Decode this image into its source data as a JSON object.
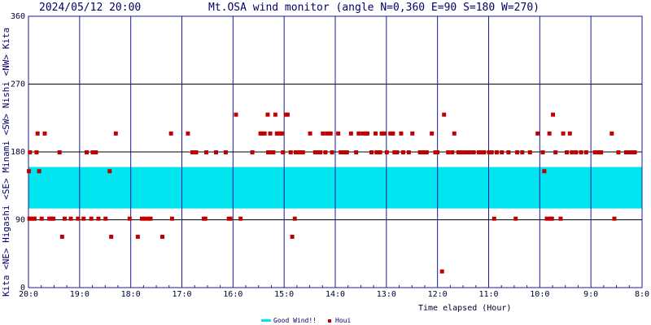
{
  "header": {
    "datetime": "2024/05/12 20:00",
    "title": "Mt.OSA wind monitor (angle N=0,360 E=90 S=180 W=270)"
  },
  "side_label": "Kita <NE> Higashi <SE> Minami <SW> Nishi <NW> Kita",
  "legend": {
    "good_label": "Good Wind!!",
    "houi_label": "Houi"
  },
  "colors": {
    "grid": "#1a1a9e",
    "good_band": "#00e5f0",
    "marker": "#c00000",
    "text": "#000066"
  },
  "chart_data": {
    "type": "scatter",
    "title": "Mt.OSA wind monitor (angle N=0,360 E=90 S=180 W=270)",
    "xlabel": "Time elapsed (Hour)",
    "ylabel": "",
    "xlim": [
      20,
      8
    ],
    "ylim": [
      0,
      360
    ],
    "xticks": [
      "20:0",
      "19:0",
      "18:0",
      "17:0",
      "16:0",
      "15:0",
      "14:0",
      "13:0",
      "12:0",
      "11:0",
      "10:0",
      "9:0",
      "8:0"
    ],
    "yticks": [
      "0",
      "90",
      "180",
      "270",
      "360"
    ],
    "good_wind_band": [
      105,
      160
    ],
    "grid": true,
    "legend_position": "bottom-center",
    "series": [
      {
        "name": "Houi",
        "points": [
          [
            20.0,
            155
          ],
          [
            19.99,
            92
          ],
          [
            19.98,
            180
          ],
          [
            19.95,
            92
          ],
          [
            19.9,
            92
          ],
          [
            19.89,
            92
          ],
          [
            19.85,
            180
          ],
          [
            19.83,
            205
          ],
          [
            19.8,
            155
          ],
          [
            19.75,
            92
          ],
          [
            19.69,
            205
          ],
          [
            19.6,
            92
          ],
          [
            19.55,
            92
          ],
          [
            19.52,
            92
          ],
          [
            19.4,
            180
          ],
          [
            19.35,
            68
          ],
          [
            19.3,
            92
          ],
          [
            19.18,
            92
          ],
          [
            19.04,
            92
          ],
          [
            18.93,
            92
          ],
          [
            18.87,
            180
          ],
          [
            18.78,
            92
          ],
          [
            18.75,
            180
          ],
          [
            18.69,
            180
          ],
          [
            18.64,
            92
          ],
          [
            18.5,
            92
          ],
          [
            18.42,
            155
          ],
          [
            18.39,
            68
          ],
          [
            18.3,
            205
          ],
          [
            18.03,
            92
          ],
          [
            17.87,
            68
          ],
          [
            17.79,
            92
          ],
          [
            17.73,
            92
          ],
          [
            17.66,
            92
          ],
          [
            17.62,
            92
          ],
          [
            17.39,
            68
          ],
          [
            17.22,
            205
          ],
          [
            17.2,
            92
          ],
          [
            16.89,
            205
          ],
          [
            16.8,
            180
          ],
          [
            16.73,
            180
          ],
          [
            16.58,
            92
          ],
          [
            16.55,
            92
          ],
          [
            16.53,
            180
          ],
          [
            16.34,
            180
          ],
          [
            16.15,
            180
          ],
          [
            16.09,
            92
          ],
          [
            16.06,
            92
          ],
          [
            15.95,
            230
          ],
          [
            15.86,
            92
          ],
          [
            15.63,
            180
          ],
          [
            15.47,
            205
          ],
          [
            15.44,
            205
          ],
          [
            15.39,
            205
          ],
          [
            15.33,
            230
          ],
          [
            15.32,
            180
          ],
          [
            15.28,
            205
          ],
          [
            15.26,
            180
          ],
          [
            15.22,
            180
          ],
          [
            15.18,
            230
          ],
          [
            15.15,
            205
          ],
          [
            15.11,
            205
          ],
          [
            15.07,
            205
          ],
          [
            15.05,
            205
          ],
          [
            15.03,
            180
          ],
          [
            14.97,
            230
          ],
          [
            14.94,
            230
          ],
          [
            14.88,
            180
          ],
          [
            14.85,
            68
          ],
          [
            14.8,
            92
          ],
          [
            14.78,
            180
          ],
          [
            14.7,
            180
          ],
          [
            14.68,
            180
          ],
          [
            14.64,
            180
          ],
          [
            14.5,
            205
          ],
          [
            14.4,
            180
          ],
          [
            14.37,
            180
          ],
          [
            14.3,
            180
          ],
          [
            14.25,
            205
          ],
          [
            14.2,
            180
          ],
          [
            14.17,
            205
          ],
          [
            14.1,
            205
          ],
          [
            14.07,
            180
          ],
          [
            13.95,
            205
          ],
          [
            13.9,
            180
          ],
          [
            13.83,
            180
          ],
          [
            13.78,
            180
          ],
          [
            13.7,
            205
          ],
          [
            13.6,
            180
          ],
          [
            13.55,
            205
          ],
          [
            13.47,
            205
          ],
          [
            13.41,
            205
          ],
          [
            13.38,
            205
          ],
          [
            13.3,
            180
          ],
          [
            13.22,
            205
          ],
          [
            13.2,
            180
          ],
          [
            13.13,
            180
          ],
          [
            13.1,
            205
          ],
          [
            13.05,
            205
          ],
          [
            13.0,
            180
          ],
          [
            12.93,
            205
          ],
          [
            12.88,
            205
          ],
          [
            12.85,
            180
          ],
          [
            12.8,
            180
          ],
          [
            12.72,
            205
          ],
          [
            12.68,
            180
          ],
          [
            12.57,
            180
          ],
          [
            12.5,
            205
          ],
          [
            12.35,
            180
          ],
          [
            12.28,
            180
          ],
          [
            12.22,
            180
          ],
          [
            12.12,
            205
          ],
          [
            12.05,
            180
          ],
          [
            12.01,
            180
          ],
          [
            11.92,
            22
          ],
          [
            11.88,
            230
          ],
          [
            11.8,
            180
          ],
          [
            11.72,
            180
          ],
          [
            11.68,
            205
          ],
          [
            11.6,
            180
          ],
          [
            11.55,
            180
          ],
          [
            11.48,
            180
          ],
          [
            11.45,
            180
          ],
          [
            11.38,
            180
          ],
          [
            11.3,
            180
          ],
          [
            11.2,
            180
          ],
          [
            11.15,
            180
          ],
          [
            11.1,
            180
          ],
          [
            11.0,
            180
          ],
          [
            10.95,
            180
          ],
          [
            10.9,
            92
          ],
          [
            10.85,
            180
          ],
          [
            10.75,
            180
          ],
          [
            10.62,
            180
          ],
          [
            10.48,
            92
          ],
          [
            10.45,
            180
          ],
          [
            10.35,
            180
          ],
          [
            10.2,
            180
          ],
          [
            10.05,
            205
          ],
          [
            9.95,
            180
          ],
          [
            9.92,
            155
          ],
          [
            9.87,
            92
          ],
          [
            9.82,
            205
          ],
          [
            9.8,
            92
          ],
          [
            9.77,
            92
          ],
          [
            9.75,
            230
          ],
          [
            9.7,
            180
          ],
          [
            9.6,
            92
          ],
          [
            9.55,
            205
          ],
          [
            9.48,
            180
          ],
          [
            9.42,
            205
          ],
          [
            9.38,
            180
          ],
          [
            9.3,
            180
          ],
          [
            9.2,
            180
          ],
          [
            9.1,
            180
          ],
          [
            8.93,
            180
          ],
          [
            8.85,
            180
          ],
          [
            8.81,
            180
          ],
          [
            8.6,
            205
          ],
          [
            8.55,
            92
          ],
          [
            8.47,
            180
          ],
          [
            8.32,
            180
          ],
          [
            8.25,
            180
          ],
          [
            8.2,
            180
          ],
          [
            8.15,
            180
          ]
        ]
      }
    ]
  }
}
